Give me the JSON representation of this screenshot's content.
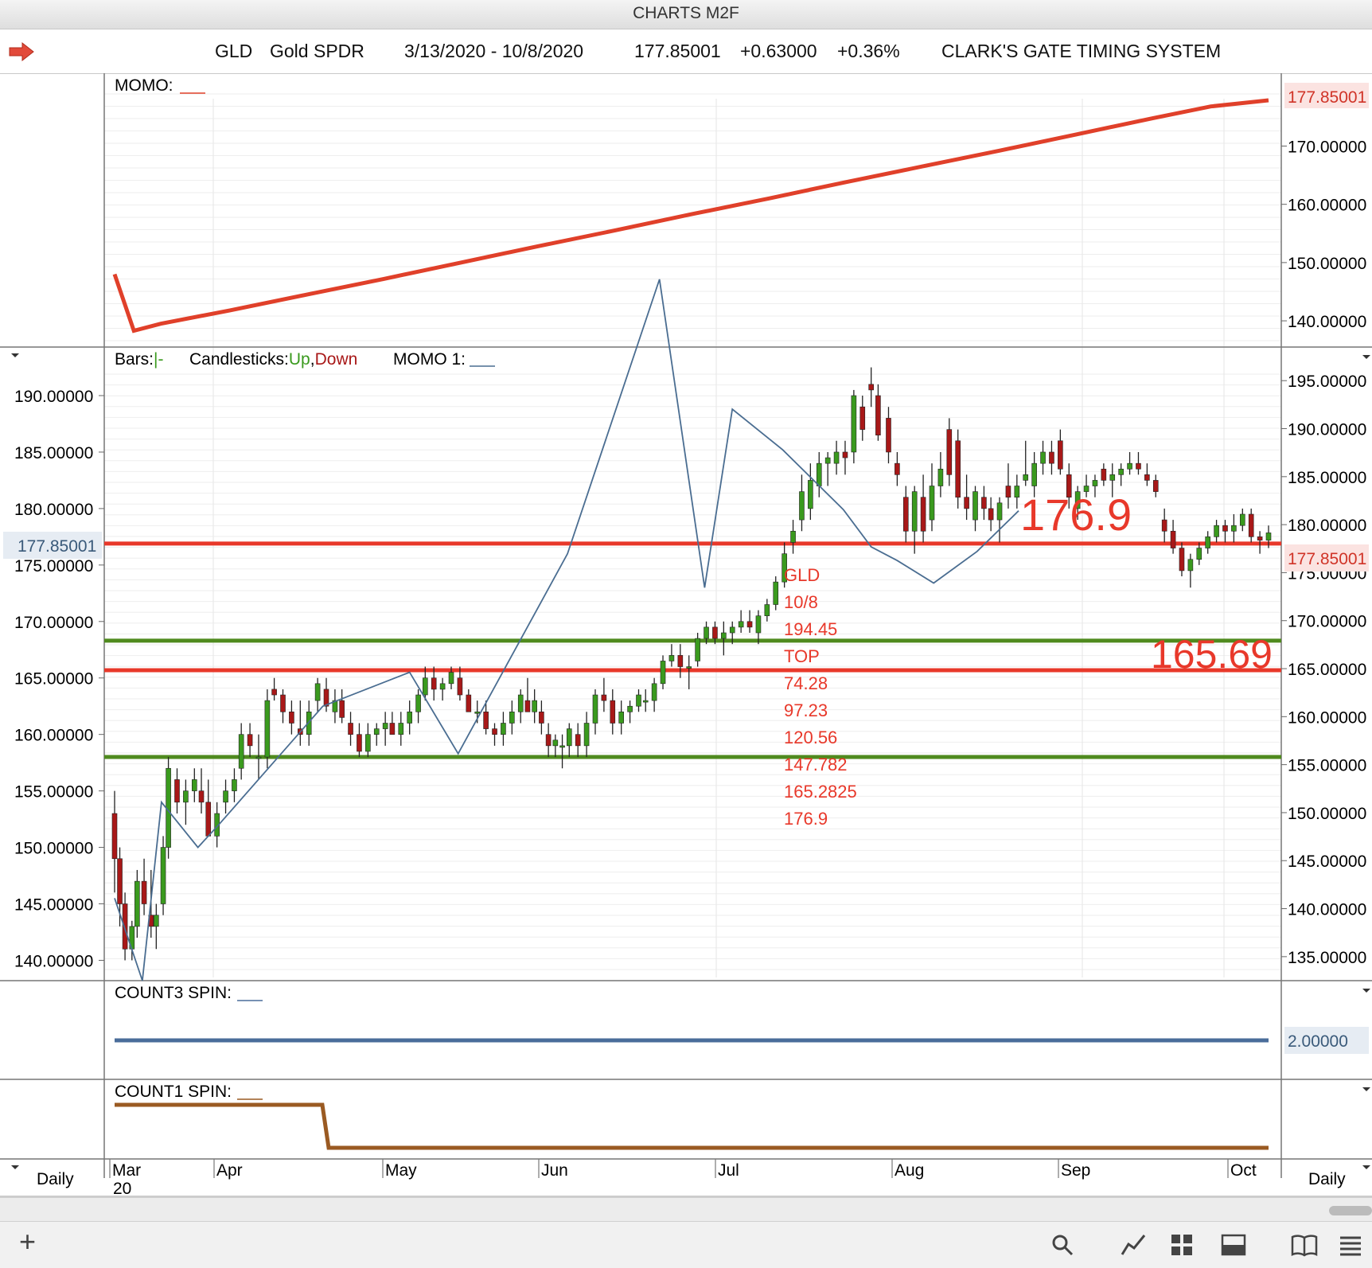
{
  "window": {
    "title": "CHARTS M2F"
  },
  "header": {
    "symbol": "GLD",
    "name": "Gold SPDR",
    "range": "3/13/2020 - 10/8/2020",
    "price": "177.85001",
    "change": "+0.63000",
    "change_pct": "+0.36%",
    "system": "CLARK'S GATE TIMING SYSTEM"
  },
  "colors": {
    "up": "#3a9a1e",
    "down": "#a81818",
    "momo": "#e0402a",
    "level_red": "#e8382a",
    "level_green": "#4f8a1e",
    "trend": "#4a6d91",
    "count3": "#4a6d9a",
    "count1": "#9a5a22"
  },
  "panels": {
    "momo": {
      "label": "MOMO:",
      "last": "177.85001"
    },
    "price": {
      "bars_label": "Bars:",
      "bars_sym": "|-",
      "candles_label": "Candlesticks:",
      "up": "Up",
      "comma": ",",
      "down": "Down",
      "momo1": "MOMO 1:",
      "last": "177.85001"
    },
    "count3": {
      "label": "COUNT3 SPIN:",
      "value": "2.00000"
    },
    "count1": {
      "label": "COUNT1 SPIN:"
    }
  },
  "annotations": {
    "big_176": "176.9",
    "big_165": "165.69",
    "list": [
      "GLD",
      "10/8",
      "194.45",
      "TOP",
      "74.28",
      "97.23",
      "120.56",
      "147.782",
      "165.2825",
      "176.9"
    ]
  },
  "footer": {
    "period_left": "Daily",
    "period_right": "Daily",
    "year": "20"
  },
  "chart_data": [
    {
      "type": "line",
      "name": "MOMO",
      "ylim": [
        135.5,
        182.5
      ],
      "y_ticks": [
        "170.00000",
        "160.00000",
        "150.00000",
        "140.00000"
      ],
      "y_tick_values": [
        170,
        160,
        150,
        140
      ],
      "points": [
        [
          0,
          148
        ],
        [
          5,
          138.3
        ],
        [
          12,
          139.5
        ],
        [
          30,
          141.8
        ],
        [
          50,
          144.5
        ],
        [
          70,
          147.2
        ],
        [
          90,
          150
        ],
        [
          110,
          152.8
        ],
        [
          130,
          155.5
        ],
        [
          150,
          158.3
        ],
        [
          170,
          161
        ],
        [
          190,
          163.8
        ],
        [
          210,
          166.5
        ],
        [
          230,
          169.2
        ],
        [
          250,
          172
        ],
        [
          270,
          174.8
        ],
        [
          285,
          176.8
        ],
        [
          300,
          177.85
        ]
      ]
    },
    {
      "type": "candlestick",
      "name": "GLD",
      "x_domain": [
        0,
        300
      ],
      "left_ylim": [
        138.2,
        194.3
      ],
      "left_ticks": [
        "190.00000",
        "185.00000",
        "180.00000",
        "175.00000",
        "170.00000",
        "165.00000",
        "160.00000",
        "155.00000",
        "150.00000",
        "145.00000",
        "140.00000"
      ],
      "left_tick_values": [
        190,
        185,
        180,
        175,
        170,
        165,
        160,
        155,
        150,
        145,
        140
      ],
      "right_ylim": [
        132.5,
        198.5
      ],
      "right_ticks": [
        "195.00000",
        "190.00000",
        "185.00000",
        "180.00000",
        "175.00000",
        "170.00000",
        "165.00000",
        "160.00000",
        "155.00000",
        "150.00000",
        "145.00000",
        "140.00000",
        "135.00000"
      ],
      "right_tick_values": [
        195,
        190,
        185,
        180,
        175,
        170,
        165,
        160,
        155,
        150,
        145,
        140,
        135
      ],
      "last_price": 177.85,
      "levels": [
        {
          "value": 176.9,
          "color": "red"
        },
        {
          "value": 168.3,
          "color": "green"
        },
        {
          "value": 165.69,
          "color": "red"
        },
        {
          "value": 158.0,
          "color": "green"
        }
      ],
      "trend_line": [
        [
          0,
          145.5
        ],
        [
          16,
          138.2
        ],
        [
          27,
          154
        ],
        [
          48,
          150
        ],
        [
          60,
          152
        ],
        [
          120,
          162.5
        ],
        [
          170,
          165.5
        ],
        [
          198,
          158.3
        ],
        [
          261,
          176
        ],
        [
          314,
          200.3
        ],
        [
          340,
          173
        ],
        [
          356,
          188.8
        ],
        [
          385,
          185.2
        ],
        [
          420,
          179.9
        ],
        [
          436,
          176.6
        ],
        [
          451,
          175.4
        ],
        [
          472,
          173.4
        ],
        [
          497,
          176.2
        ],
        [
          521,
          179.8
        ]
      ],
      "candles": [
        [
          0,
          153,
          155,
          146,
          149
        ],
        [
          3,
          149,
          150,
          143,
          145
        ],
        [
          6,
          145,
          146,
          140,
          141
        ],
        [
          10,
          141,
          143.5,
          140,
          143
        ],
        [
          13,
          143,
          148,
          142,
          147
        ],
        [
          17,
          147,
          149,
          144,
          145
        ],
        [
          21,
          144,
          148,
          142,
          143
        ],
        [
          24,
          143,
          145,
          141,
          144
        ],
        [
          28,
          145,
          151,
          144,
          150
        ],
        [
          31,
          150,
          158,
          149,
          157
        ],
        [
          36,
          156,
          157,
          153,
          154
        ],
        [
          41,
          154,
          156,
          152,
          155
        ],
        [
          46,
          155,
          157,
          154,
          156
        ],
        [
          50,
          155,
          157,
          153,
          154
        ],
        [
          54,
          154,
          156,
          151,
          151
        ],
        [
          59,
          151,
          154,
          150,
          153
        ],
        [
          64,
          154,
          156,
          153,
          155
        ],
        [
          69,
          155,
          157,
          154,
          156
        ],
        [
          73,
          157,
          161,
          156,
          160
        ],
        [
          78,
          160,
          161,
          158,
          159
        ],
        [
          83,
          158,
          160,
          156,
          158
        ],
        [
          88,
          158,
          164,
          157,
          163
        ],
        [
          92,
          164,
          165,
          163,
          163.5
        ],
        [
          97,
          163.5,
          164,
          161,
          162
        ],
        [
          102,
          162,
          163,
          160,
          161
        ],
        [
          107,
          160.5,
          163,
          159,
          160
        ],
        [
          112,
          160,
          163,
          159,
          162
        ],
        [
          117,
          163,
          165,
          162,
          164.5
        ],
        [
          122,
          164,
          165,
          162,
          162.5
        ],
        [
          127,
          162,
          164,
          161,
          163
        ],
        [
          131,
          163,
          164,
          161,
          161.5
        ],
        [
          136,
          161,
          162,
          159,
          160
        ],
        [
          141,
          160,
          161,
          158,
          158.5
        ],
        [
          146,
          158.5,
          161,
          158,
          160
        ],
        [
          151,
          160,
          161,
          159,
          160.5
        ],
        [
          156,
          160.5,
          162,
          159,
          161
        ],
        [
          160,
          161,
          162,
          160,
          160
        ],
        [
          165,
          160,
          162,
          159,
          161
        ],
        [
          170,
          161,
          163,
          160,
          162
        ],
        [
          175,
          162,
          164,
          161,
          163.5
        ],
        [
          179,
          163.5,
          166,
          163,
          165
        ],
        [
          184,
          165,
          166,
          163,
          164
        ],
        [
          189,
          164,
          165,
          163,
          164.5
        ],
        [
          194,
          164.5,
          166,
          164,
          165.5
        ],
        [
          199,
          165,
          166,
          163,
          163.5
        ],
        [
          204,
          163.5,
          164,
          162,
          162
        ],
        [
          209,
          162,
          163,
          161,
          162
        ],
        [
          214,
          162,
          163,
          160,
          160.5
        ],
        [
          219,
          160.5,
          161,
          159,
          160
        ],
        [
          224,
          160,
          162,
          159,
          161
        ],
        [
          229,
          161,
          163,
          160,
          162
        ],
        [
          234,
          162,
          164,
          161,
          163.5
        ],
        [
          238,
          163,
          165,
          162,
          162
        ],
        [
          242,
          162,
          164,
          161,
          163
        ],
        [
          246,
          162,
          163,
          160,
          161
        ],
        [
          250,
          160,
          161,
          158,
          159
        ],
        [
          254,
          159,
          160,
          158,
          159.5
        ],
        [
          258,
          159,
          160,
          157,
          159
        ],
        [
          262,
          159,
          161,
          158,
          160.5
        ],
        [
          267,
          160,
          161,
          158,
          159
        ],
        [
          272,
          159,
          162,
          158,
          161
        ],
        [
          277,
          161,
          164,
          160,
          163.5
        ],
        [
          282,
          163.5,
          165,
          162,
          163
        ],
        [
          287,
          163,
          164,
          160,
          161
        ],
        [
          292,
          161,
          163,
          160,
          162
        ],
        [
          297,
          162,
          163,
          161,
          162.5
        ],
        [
          302,
          162.5,
          164,
          162,
          163.5
        ],
        [
          306,
          163,
          164,
          162,
          163
        ],
        [
          311,
          163,
          165,
          162,
          164.5
        ],
        [
          316,
          164.5,
          167,
          164,
          166.5
        ],
        [
          321,
          166.5,
          168,
          166,
          167
        ],
        [
          326,
          167,
          168,
          165,
          166
        ],
        [
          331,
          166,
          167,
          164,
          166
        ],
        [
          336,
          166.5,
          169,
          166,
          168.5
        ],
        [
          341,
          168.5,
          170,
          168,
          169.5
        ],
        [
          346,
          169.5,
          170,
          168,
          168.5
        ],
        [
          351,
          168.5,
          170,
          167,
          169
        ],
        [
          356,
          169,
          170,
          168,
          169.5
        ],
        [
          361,
          169.5,
          171,
          169,
          170
        ],
        [
          366,
          170,
          171,
          169,
          169.5
        ],
        [
          371,
          169,
          171,
          168,
          170.5
        ],
        [
          376,
          170.5,
          172,
          170,
          171.5
        ],
        [
          381,
          171.5,
          174,
          171,
          173.5
        ],
        [
          386,
          173.5,
          177,
          173,
          176
        ],
        [
          391,
          177,
          179,
          176,
          178
        ],
        [
          396,
          179,
          183,
          178,
          181.5
        ],
        [
          401,
          180,
          184,
          179,
          182.5
        ],
        [
          406,
          182,
          185,
          181,
          184
        ],
        [
          411,
          184,
          185,
          182,
          184.5
        ],
        [
          416,
          184,
          186,
          183,
          185
        ],
        [
          421,
          185,
          186,
          183,
          184.5
        ],
        [
          426,
          185,
          190.5,
          184,
          190
        ],
        [
          431,
          189,
          190,
          186,
          187
        ],
        [
          436,
          191,
          192.5,
          189,
          190.5
        ],
        [
          440,
          190,
          191,
          186,
          186.5
        ],
        [
          446,
          188,
          189,
          184,
          185
        ],
        [
          451,
          184,
          185,
          182,
          183
        ],
        [
          456,
          181,
          182,
          177,
          178
        ],
        [
          461,
          178,
          182,
          176,
          181.5
        ],
        [
          466,
          181,
          183,
          177,
          178
        ],
        [
          471,
          179,
          184,
          178,
          182
        ],
        [
          476,
          182,
          185,
          181,
          183.5
        ],
        [
          481,
          187,
          188,
          182,
          183
        ],
        [
          486,
          186,
          187,
          180,
          181
        ],
        [
          491,
          181,
          183,
          179,
          180
        ],
        [
          496,
          179,
          182,
          178,
          181.5
        ],
        [
          501,
          181,
          182,
          179,
          180
        ],
        [
          505,
          180,
          181,
          178,
          179
        ],
        [
          510,
          179,
          181,
          177,
          180.5
        ],
        [
          515,
          182,
          184,
          180,
          181
        ],
        [
          520,
          181,
          183,
          180,
          182
        ],
        [
          525,
          182.5,
          186,
          182,
          183
        ],
        [
          530,
          182,
          185,
          181,
          184
        ],
        [
          535,
          184,
          186,
          183,
          185
        ],
        [
          540,
          185,
          186,
          183,
          184
        ],
        [
          545,
          186,
          187,
          183,
          183.5
        ],
        [
          550,
          183,
          184,
          180,
          181
        ],
        [
          555,
          180,
          182,
          179,
          181.5
        ],
        [
          560,
          181.5,
          183,
          181,
          182
        ],
        [
          565,
          182,
          183,
          181,
          182.5
        ],
        [
          570,
          183.5,
          184,
          182,
          182.5
        ],
        [
          575,
          182.5,
          184,
          181,
          183
        ],
        [
          580,
          183,
          184,
          182,
          183.5
        ],
        [
          585,
          183.5,
          185,
          183,
          184
        ],
        [
          590,
          184,
          185,
          183,
          183.5
        ],
        [
          595,
          183,
          184,
          182,
          182.5
        ],
        [
          600,
          182.5,
          183,
          181,
          181.5
        ],
        [
          605,
          179,
          180,
          177,
          178
        ],
        [
          610,
          178,
          179,
          176,
          176.5
        ],
        [
          615,
          176.5,
          177,
          174,
          174.5
        ],
        [
          620,
          174.5,
          176,
          173,
          175.5
        ],
        [
          625,
          175.5,
          177,
          175,
          176.5
        ],
        [
          630,
          176.5,
          178,
          176,
          177.5
        ],
        [
          635,
          177.5,
          179,
          177,
          178.5
        ],
        [
          640,
          178.5,
          179,
          177,
          178
        ],
        [
          645,
          178,
          179.5,
          177,
          178.5
        ],
        [
          650,
          178.5,
          180,
          178,
          179.5
        ],
        [
          655,
          179.5,
          180,
          177,
          177.5
        ],
        [
          660,
          177.5,
          178,
          176,
          177.2
        ],
        [
          665,
          177.2,
          178.5,
          176.5,
          177.85
        ]
      ]
    }
  ]
}
